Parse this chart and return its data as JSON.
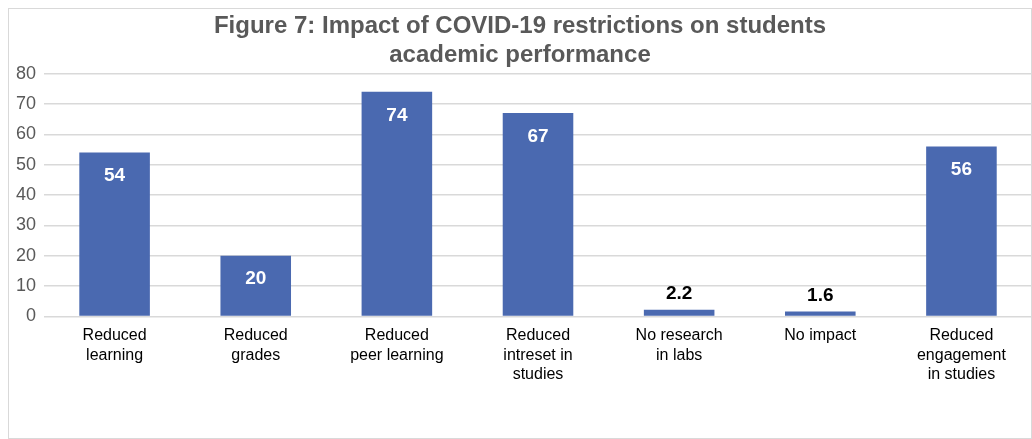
{
  "chart_data": {
    "type": "bar",
    "title": "Figure 7: Impact of COVID-19 restrictions on students academic performance",
    "categories": [
      "Reduced learning",
      "Reduced grades",
      "Reduced peer learning",
      "Reduced intreset in studies",
      "No research in labs",
      "No impact",
      "Reduced engagement in studies"
    ],
    "values": [
      54,
      20,
      74,
      67,
      2.2,
      1.6,
      56
    ],
    "color": "#4a69b0",
    "ylim": [
      0,
      80
    ],
    "yticks": [
      0,
      10,
      20,
      30,
      40,
      50,
      60,
      70,
      80
    ],
    "grid": "y",
    "data_labels": true,
    "legend": false
  }
}
